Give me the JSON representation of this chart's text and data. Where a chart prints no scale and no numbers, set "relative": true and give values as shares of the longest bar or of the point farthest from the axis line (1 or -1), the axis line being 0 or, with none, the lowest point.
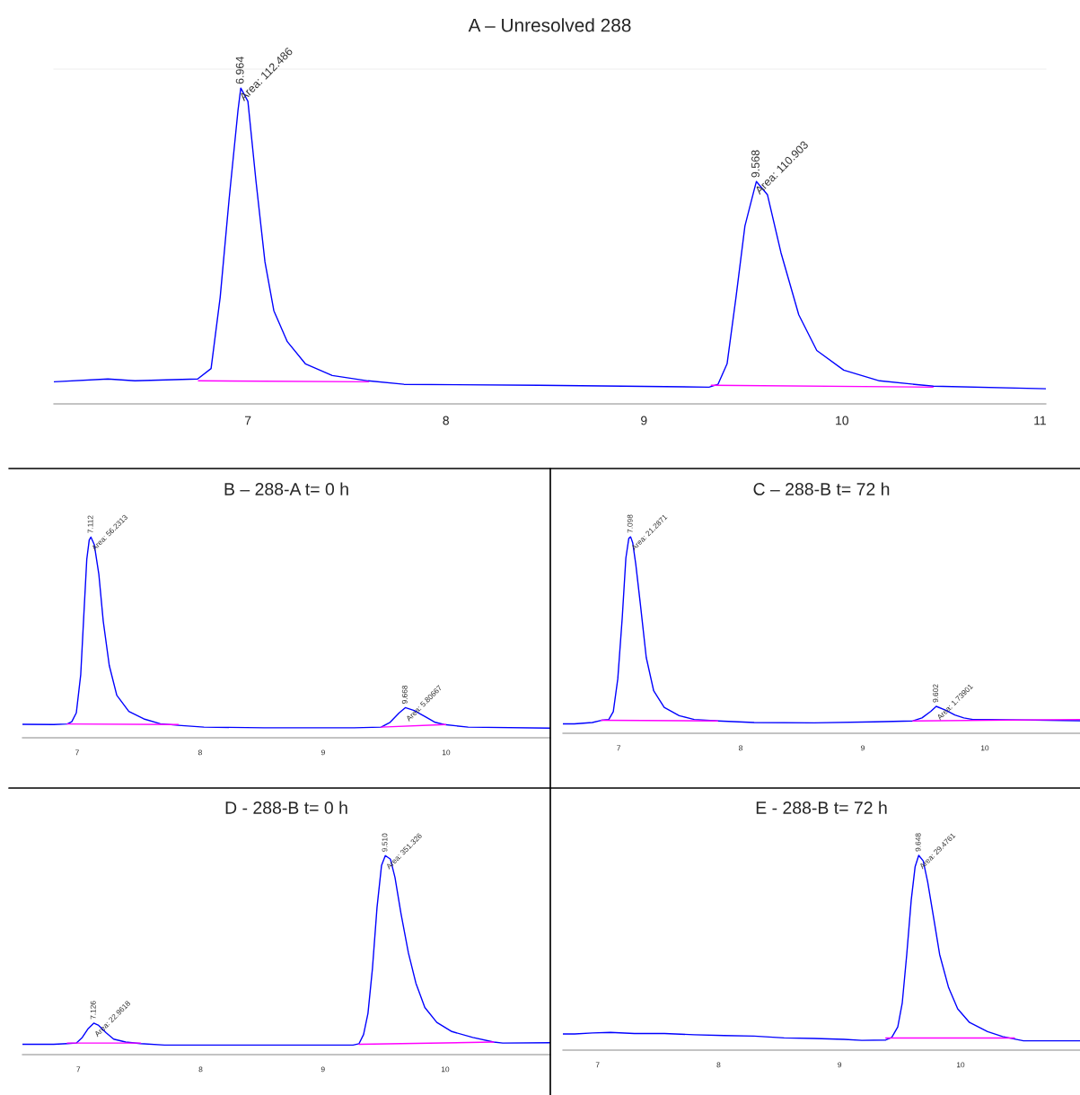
{
  "chart_data": [
    {
      "type": "line",
      "title": "A – Unresolved 288",
      "relative": true,
      "xlim": [
        6.02,
        11.03
      ],
      "xticks": [
        7,
        8,
        9,
        10,
        11
      ],
      "grid": false,
      "legend": false,
      "series": [
        {
          "color": "#0000ff",
          "x": [
            6.021,
            6.293,
            6.429,
            6.746,
            6.814,
            6.86,
            6.905,
            6.95,
            6.964,
            7.0,
            7.041,
            7.086,
            7.131,
            7.199,
            7.29,
            7.426,
            7.607,
            7.788,
            8.468,
            9.329,
            9.374,
            9.42,
            9.465,
            9.51,
            9.556,
            9.568,
            9.624,
            9.692,
            9.782,
            9.873,
            10.009,
            10.19,
            10.462,
            11.029
          ],
          "values": [
            0.07,
            0.079,
            0.073,
            0.079,
            0.112,
            0.338,
            0.648,
            0.93,
            1,
            0.958,
            0.704,
            0.45,
            0.295,
            0.197,
            0.127,
            0.09,
            0.073,
            0.062,
            0.059,
            0.053,
            0.062,
            0.127,
            0.338,
            0.563,
            0.676,
            0.704,
            0.662,
            0.479,
            0.282,
            0.169,
            0.107,
            0.073,
            0.056,
            0.048
          ]
        },
        {
          "color": "#ff00ff",
          "x": [
            6.75,
            7.61,
            8.5,
            9.34,
            10.46
          ],
          "values": [
            0.073,
            0.07,
            null,
            0.059,
            0.053
          ]
        }
      ],
      "annotations": [
        {
          "text": "6.964",
          "x": 6.964,
          "y": 1
        },
        {
          "text": "Area: 112.486",
          "x": 6.964,
          "y": 1
        },
        {
          "text": "9.568",
          "x": 9.568,
          "y": 0.704
        },
        {
          "text": "Area: 110.903",
          "x": 9.568,
          "y": 0.704
        }
      ]
    },
    {
      "type": "line",
      "title": "B – 288-A t= 0 h",
      "relative": true,
      "xlim": [
        6.555,
        10.847
      ],
      "xticks": [
        7,
        8,
        9,
        10
      ],
      "grid": false,
      "legend": false,
      "series": [
        {
          "color": "#0000ff",
          "x": [
            6.555,
            6.81,
            6.919,
            6.956,
            6.993,
            7.029,
            7.054,
            7.078,
            7.098,
            7.112,
            7.139,
            7.176,
            7.212,
            7.261,
            7.322,
            7.42,
            7.542,
            7.676,
            7.823,
            8.031,
            8.519,
            9.252,
            9.471,
            9.544,
            9.618,
            9.668,
            9.74,
            9.838,
            9.911,
            9.984,
            10.179,
            10.847
          ],
          "values": [
            0.067,
            0.066,
            0.069,
            0.08,
            0.124,
            0.315,
            0.61,
            0.889,
            0.986,
            1,
            0.963,
            0.816,
            0.581,
            0.36,
            0.212,
            0.131,
            0.094,
            0.07,
            0.062,
            0.053,
            0.05,
            0.05,
            0.053,
            0.077,
            0.124,
            0.15,
            0.136,
            0.102,
            0.077,
            0.066,
            0.053,
            0.048
          ]
        },
        {
          "color": "#ff00ff",
          "x": [
            6.919,
            7.823,
            8.6,
            9.471,
            9.996
          ],
          "values": [
            0.069,
            0.066,
            null,
            0.053,
            0.066
          ]
        }
      ],
      "annotations": [
        {
          "text": "7.112",
          "x": 7.112,
          "y": 1
        },
        {
          "text": "Area: 56.2313",
          "x": 7.112,
          "y": 1
        },
        {
          "text": "9.668",
          "x": 9.668,
          "y": 0.15
        },
        {
          "text": "Area: 5.80667",
          "x": 9.668,
          "y": 0.15
        }
      ]
    },
    {
      "type": "line",
      "title": "C – 288-B t= 72 h",
      "relative": true,
      "xlim": [
        6.543,
        10.78
      ],
      "xticks": [
        7,
        8,
        9,
        10
      ],
      "grid": false,
      "legend": false,
      "series": [
        {
          "color": "#0000ff",
          "x": [
            6.543,
            6.637,
            6.784,
            6.858,
            6.919,
            6.956,
            6.993,
            7.029,
            7.059,
            7.083,
            7.098,
            7.115,
            7.14,
            7.177,
            7.226,
            7.287,
            7.373,
            7.496,
            7.619,
            7.815,
            8.11,
            8.601,
            9.092,
            9.411,
            9.485,
            9.558,
            9.602,
            9.681,
            9.755,
            9.828,
            9.902,
            10.025,
            10.78
          ],
          "values": [
            0.048,
            0.048,
            0.055,
            0.066,
            0.07,
            0.11,
            0.278,
            0.586,
            0.892,
            0.992,
            1,
            0.97,
            0.862,
            0.662,
            0.386,
            0.216,
            0.132,
            0.09,
            0.07,
            0.063,
            0.055,
            0.053,
            0.058,
            0.063,
            0.078,
            0.112,
            0.137,
            0.117,
            0.093,
            0.078,
            0.07,
            0.07,
            0.064
          ]
        },
        {
          "color": "#ff00ff",
          "x": [
            6.858,
            7.81,
            8.6,
            9.411,
            10.78
          ],
          "values": [
            0.066,
            0.063,
            null,
            0.063,
            0.07
          ]
        }
      ],
      "annotations": [
        {
          "text": "7.098",
          "x": 7.098,
          "y": 1
        },
        {
          "text": "Area: 21.2871",
          "x": 7.098,
          "y": 1
        },
        {
          "text": "9.602",
          "x": 9.602,
          "y": 0.137
        },
        {
          "text": "Area: 1.73901",
          "x": 9.602,
          "y": 0.137
        }
      ]
    },
    {
      "type": "line",
      "title": "D - 288-B t= 0 h",
      "relative": true,
      "xlim": [
        6.543,
        10.859
      ],
      "xticks": [
        7,
        8,
        9,
        10
      ],
      "grid": false,
      "legend": false,
      "series": [
        {
          "color": "#0000ff",
          "x": [
            6.543,
            6.799,
            6.909,
            6.983,
            7.032,
            7.081,
            7.126,
            7.166,
            7.228,
            7.289,
            7.387,
            7.509,
            7.705,
            8.267,
            9.246,
            9.295,
            9.332,
            9.368,
            9.405,
            9.442,
            9.479,
            9.51,
            9.552,
            9.589,
            9.638,
            9.699,
            9.76,
            9.833,
            9.931,
            10.054,
            10.225,
            10.396,
            10.47,
            10.859
          ],
          "values": [
            0.052,
            0.052,
            0.055,
            0.058,
            0.086,
            0.131,
            0.158,
            0.147,
            0.109,
            0.078,
            0.063,
            0.055,
            0.048,
            0.048,
            0.048,
            0.055,
            0.101,
            0.207,
            0.435,
            0.739,
            0.951,
            1,
            0.982,
            0.89,
            0.709,
            0.51,
            0.359,
            0.237,
            0.162,
            0.116,
            0.086,
            0.063,
            0.058,
            0.06
          ]
        },
        {
          "color": "#ff00ff",
          "x": [
            6.909,
            7.509,
            8.4,
            9.295,
            10.396
          ],
          "values": [
            0.058,
            0.058,
            null,
            0.052,
            0.063
          ]
        }
      ],
      "annotations": [
        {
          "text": "7.126",
          "x": 7.126,
          "y": 0.158
        },
        {
          "text": "Area: 22.9618",
          "x": 7.126,
          "y": 0.158
        },
        {
          "text": "9.510",
          "x": 9.51,
          "y": 1
        },
        {
          "text": "Area: 351.326",
          "x": 9.51,
          "y": 1
        }
      ]
    },
    {
      "type": "line",
      "title": "E - 288-B t= 72 h",
      "relative": true,
      "xlim": [
        6.713,
        10.987
      ],
      "xticks": [
        7,
        8,
        9,
        10
      ],
      "grid": false,
      "legend": false,
      "series": [
        {
          "color": "#0000ff",
          "x": [
            6.713,
            6.81,
            6.958,
            7.106,
            7.304,
            7.552,
            7.799,
            8.046,
            8.294,
            8.541,
            8.788,
            9.036,
            9.184,
            9.382,
            9.431,
            9.481,
            9.518,
            9.555,
            9.592,
            9.624,
            9.654,
            9.691,
            9.728,
            9.778,
            9.827,
            9.901,
            9.976,
            10.074,
            10.223,
            10.347,
            10.445,
            10.52,
            10.987
          ],
          "values": [
            0.083,
            0.083,
            0.088,
            0.091,
            0.085,
            0.085,
            0.079,
            0.075,
            0.072,
            0.063,
            0.06,
            0.055,
            0.05,
            0.052,
            0.065,
            0.119,
            0.243,
            0.491,
            0.77,
            0.941,
            1,
            0.972,
            0.864,
            0.677,
            0.491,
            0.321,
            0.212,
            0.142,
            0.095,
            0.07,
            0.057,
            0.048,
            0.048
          ]
        },
        {
          "color": "#ff00ff",
          "x": [
            9.382,
            10.445
          ],
          "values": [
            0.062,
            0.062
          ]
        }
      ],
      "annotations": [
        {
          "text": "9.648",
          "x": 9.654,
          "y": 1
        },
        {
          "text": "Area: 29.4761",
          "x": 9.654,
          "y": 1
        }
      ]
    }
  ]
}
